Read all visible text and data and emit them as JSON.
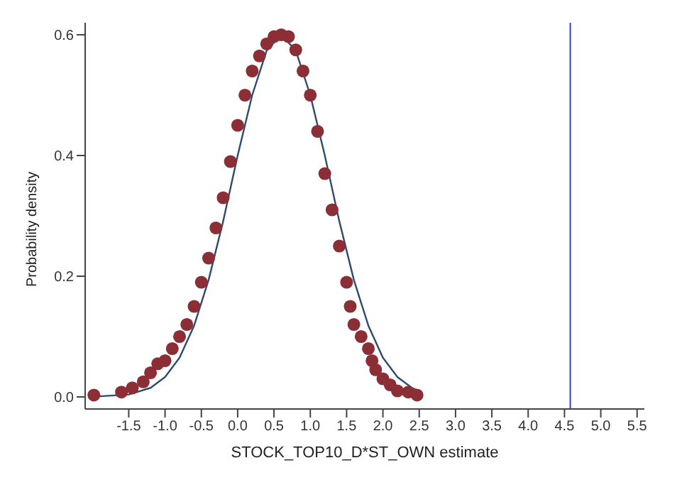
{
  "chart_data": {
    "type": "scatter",
    "xlabel": "STOCK_TOP10_D*ST_OWN estimate",
    "ylabel": "Probability density",
    "xlim": [
      -2.1,
      5.6
    ],
    "ylim": [
      -0.02,
      0.62
    ],
    "xticks": [
      {
        "value": -1.5,
        "label": "-1.5"
      },
      {
        "value": -1,
        "label": "-1.0"
      },
      {
        "value": -0.5,
        "label": "-0.5"
      },
      {
        "value": 0,
        "label": "0.0"
      },
      {
        "value": 0.5,
        "label": "0.5"
      },
      {
        "value": 1,
        "label": "1.0"
      },
      {
        "value": 1.5,
        "label": "1.5"
      },
      {
        "value": 2,
        "label": "2.0"
      },
      {
        "value": 2.5,
        "label": "2.5"
      },
      {
        "value": 3,
        "label": "3.0"
      },
      {
        "value": 3.5,
        "label": "3.5"
      },
      {
        "value": 4,
        "label": "4.0"
      },
      {
        "value": 4.5,
        "label": "4.5"
      },
      {
        "value": 5,
        "label": "5.0"
      },
      {
        "value": 5.5,
        "label": "5.5"
      }
    ],
    "yticks": [
      {
        "value": 0,
        "label": "0.0"
      },
      {
        "value": 0.2,
        "label": "0.2"
      },
      {
        "value": 0.4,
        "label": "0.4"
      },
      {
        "value": 0.6,
        "label": "0.6"
      }
    ],
    "grid": false,
    "series": [
      {
        "color": "#8b2e35",
        "marker": "circle",
        "x": [
          -1.98,
          -1.6,
          -1.45,
          -1.3,
          -1.2,
          -1.1,
          -1.0,
          -0.9,
          -0.8,
          -0.7,
          -0.6,
          -0.5,
          -0.4,
          -0.3,
          -0.2,
          -0.1,
          0.0,
          0.1,
          0.2,
          0.3,
          0.4,
          0.5,
          0.6,
          0.7,
          0.8,
          0.9,
          1.0,
          1.1,
          1.2,
          1.3,
          1.4,
          1.5,
          1.55,
          1.6,
          1.7,
          1.8,
          1.85,
          1.9,
          2.0,
          2.1,
          2.2,
          2.35,
          2.47
        ],
        "values": [
          0.003,
          0.008,
          0.015,
          0.025,
          0.04,
          0.055,
          0.06,
          0.08,
          0.1,
          0.12,
          0.15,
          0.19,
          0.23,
          0.28,
          0.33,
          0.39,
          0.45,
          0.5,
          0.54,
          0.565,
          0.585,
          0.597,
          0.6,
          0.597,
          0.575,
          0.54,
          0.5,
          0.44,
          0.37,
          0.31,
          0.25,
          0.19,
          0.15,
          0.12,
          0.1,
          0.08,
          0.06,
          0.045,
          0.03,
          0.02,
          0.01,
          0.008,
          0.003
        ]
      },
      {
        "type": "line",
        "color": "#2e4a6e",
        "marker": "none",
        "line_style": "solid",
        "x": [
          -1.9,
          -1.5,
          -1.2,
          -1.0,
          -0.8,
          -0.6,
          -0.4,
          -0.2,
          0,
          0.2,
          0.4,
          0.6,
          0.8,
          1.0,
          1.2,
          1.4,
          1.6,
          1.8,
          2.0,
          2.2,
          2.4,
          2.5
        ],
        "values": [
          0.001,
          0.004,
          0.015,
          0.033,
          0.065,
          0.118,
          0.194,
          0.291,
          0.4,
          0.5,
          0.574,
          0.6,
          0.574,
          0.5,
          0.4,
          0.291,
          0.194,
          0.118,
          0.065,
          0.033,
          0.015,
          0.01
        ]
      }
    ],
    "ref_lines": [
      {
        "axis": "x",
        "value": 4.58,
        "color": "#2b3fe0",
        "line_style": "solid"
      }
    ]
  }
}
